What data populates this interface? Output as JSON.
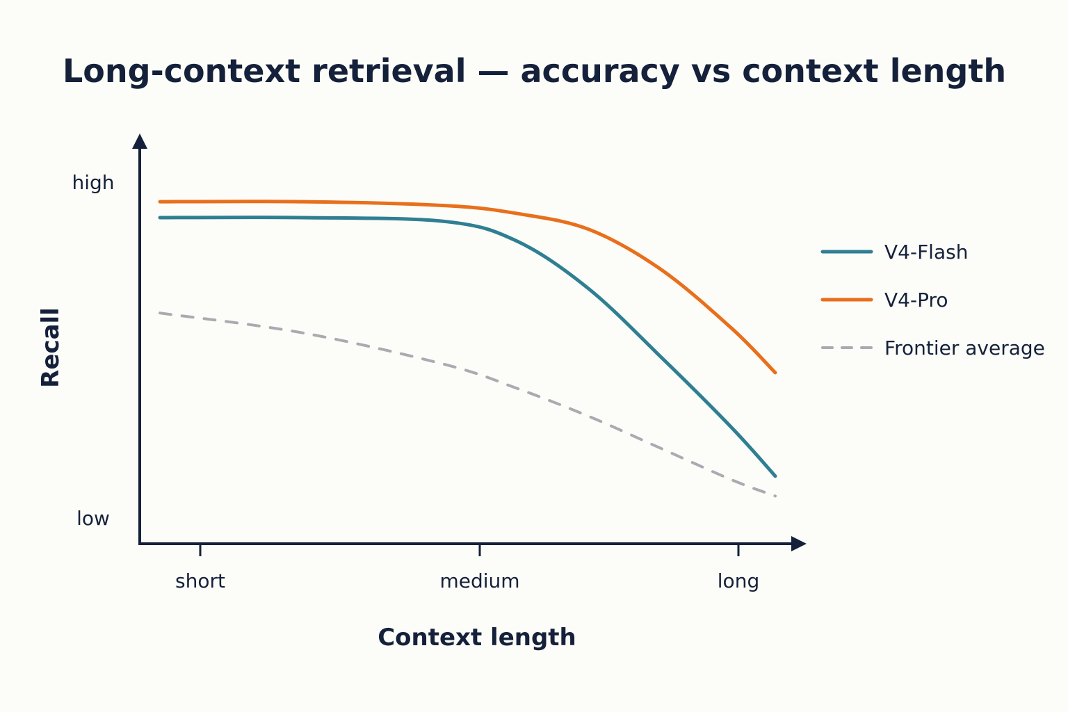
{
  "chart_data": {
    "type": "line",
    "title": "Long-context retrieval — accuracy vs context length",
    "xlabel": "Context length",
    "ylabel": "Recall",
    "x_tick_labels": [
      "short",
      "medium",
      "long"
    ],
    "y_tick_labels": [
      "high",
      "low"
    ],
    "x": [
      0.0,
      0.5,
      1.0,
      1.25,
      1.5,
      1.75,
      2.0,
      2.15
    ],
    "series": [
      {
        "name": "V4-Flash",
        "color": "#2f7f92",
        "values": [
          0.82,
          0.82,
          0.81,
          0.76,
          0.64,
          0.47,
          0.29,
          0.17
        ]
      },
      {
        "name": "V4-Pro",
        "color": "#e86f1c",
        "values": [
          0.86,
          0.86,
          0.85,
          0.83,
          0.79,
          0.69,
          0.54,
          0.43
        ]
      },
      {
        "name": "Frontier average",
        "color": "#a9abb0",
        "dashed": true,
        "values": [
          0.58,
          0.53,
          0.45,
          0.39,
          0.32,
          0.24,
          0.16,
          0.12
        ]
      }
    ],
    "legend": "right",
    "grid": false
  }
}
